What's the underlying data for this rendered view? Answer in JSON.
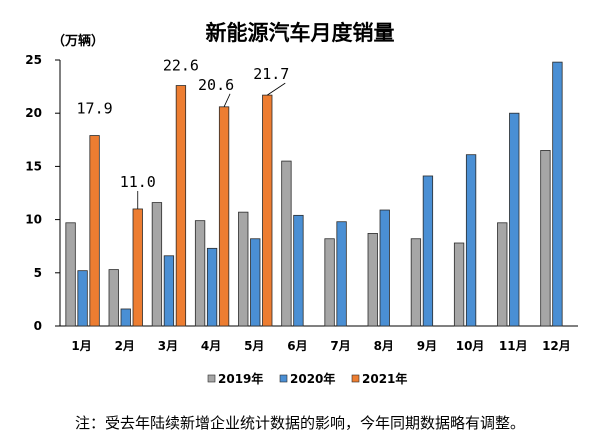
{
  "chart_data": {
    "type": "bar",
    "title": "新能源汽车月度销量",
    "unit_label": "（万辆）",
    "categories": [
      "1月",
      "2月",
      "3月",
      "4月",
      "5月",
      "6月",
      "7月",
      "8月",
      "9月",
      "10月",
      "11月",
      "12月"
    ],
    "series": [
      {
        "name": "2019年",
        "color": "#a6a6a6",
        "values": [
          9.7,
          5.3,
          11.6,
          9.9,
          10.7,
          15.5,
          8.2,
          8.7,
          8.2,
          7.8,
          9.7,
          16.5
        ]
      },
      {
        "name": "2020年",
        "color": "#4a8fd4",
        "values": [
          5.2,
          1.6,
          6.6,
          7.3,
          8.2,
          10.4,
          9.8,
          10.9,
          14.1,
          16.1,
          20.0,
          24.8
        ]
      },
      {
        "name": "2021年",
        "color": "#ed7d31",
        "values": [
          17.9,
          11.0,
          22.6,
          20.6,
          21.7,
          null,
          null,
          null,
          null,
          null,
          null,
          null
        ]
      }
    ],
    "data_labels": [
      "17.9",
      "11.0",
      "22.6",
      "20.6",
      "21.7"
    ],
    "yticks": [
      "0",
      "5",
      "10",
      "15",
      "20",
      "25"
    ],
    "ylim": [
      0,
      25
    ],
    "grid": false,
    "legend_position": "bottom"
  },
  "note": "注：受去年陆续新增企业统计数据的影响，今年同期数据略有调整。"
}
